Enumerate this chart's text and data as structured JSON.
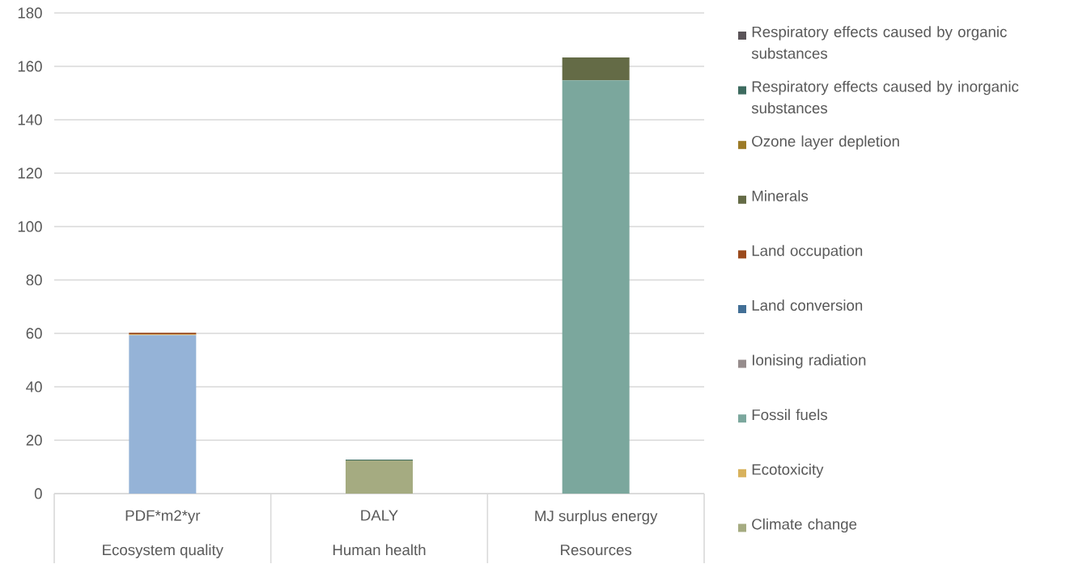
{
  "chart_data": {
    "type": "bar",
    "stacked": true,
    "categories": [
      "PDF*m2*yr",
      "DALY",
      "MJ surplus energy"
    ],
    "annotations": [
      "Ecosystem quality",
      "Human health",
      "Resources"
    ],
    "series": [
      {
        "color": "#95b3d7",
        "values": [
          59.3,
          0,
          0
        ]
      },
      {
        "name": "Climate change",
        "color": "#a5ab81",
        "values": [
          0,
          12.4,
          0
        ]
      },
      {
        "name": "Ecotoxicity",
        "color": "#d8b25c",
        "values": [
          0.3,
          0,
          0
        ]
      },
      {
        "name": "Fossil fuels",
        "color": "#7ba79d",
        "values": [
          0,
          0,
          154.8
        ]
      },
      {
        "name": "Ionising radiation",
        "color": "#968c8c",
        "values": [
          0,
          0,
          0
        ]
      },
      {
        "name": "Land conversion",
        "color": "#426f96",
        "values": [
          0,
          0,
          0
        ]
      },
      {
        "name": "Land occupation",
        "color": "#9b4a1d",
        "values": [
          0.6,
          0,
          0
        ]
      },
      {
        "name": "Minerals",
        "color": "#646b46",
        "values": [
          0,
          0,
          8.5
        ]
      },
      {
        "name": "Ozone layer depletion",
        "color": "#9c7a26",
        "values": [
          0,
          0,
          0
        ]
      },
      {
        "name": "Respiratory effects caused by inorganic substances",
        "color": "#3d6b5f",
        "values": [
          0,
          0.3,
          0
        ]
      },
      {
        "name": "Respiratory effects caused by organic substances",
        "color": "#5a5458",
        "values": [
          0,
          0,
          0
        ]
      }
    ],
    "ylim": [
      0,
      180
    ],
    "yticks": [
      0,
      20,
      40,
      60,
      80,
      100,
      120,
      140,
      160,
      180
    ],
    "grid": "y",
    "legend": "right"
  }
}
